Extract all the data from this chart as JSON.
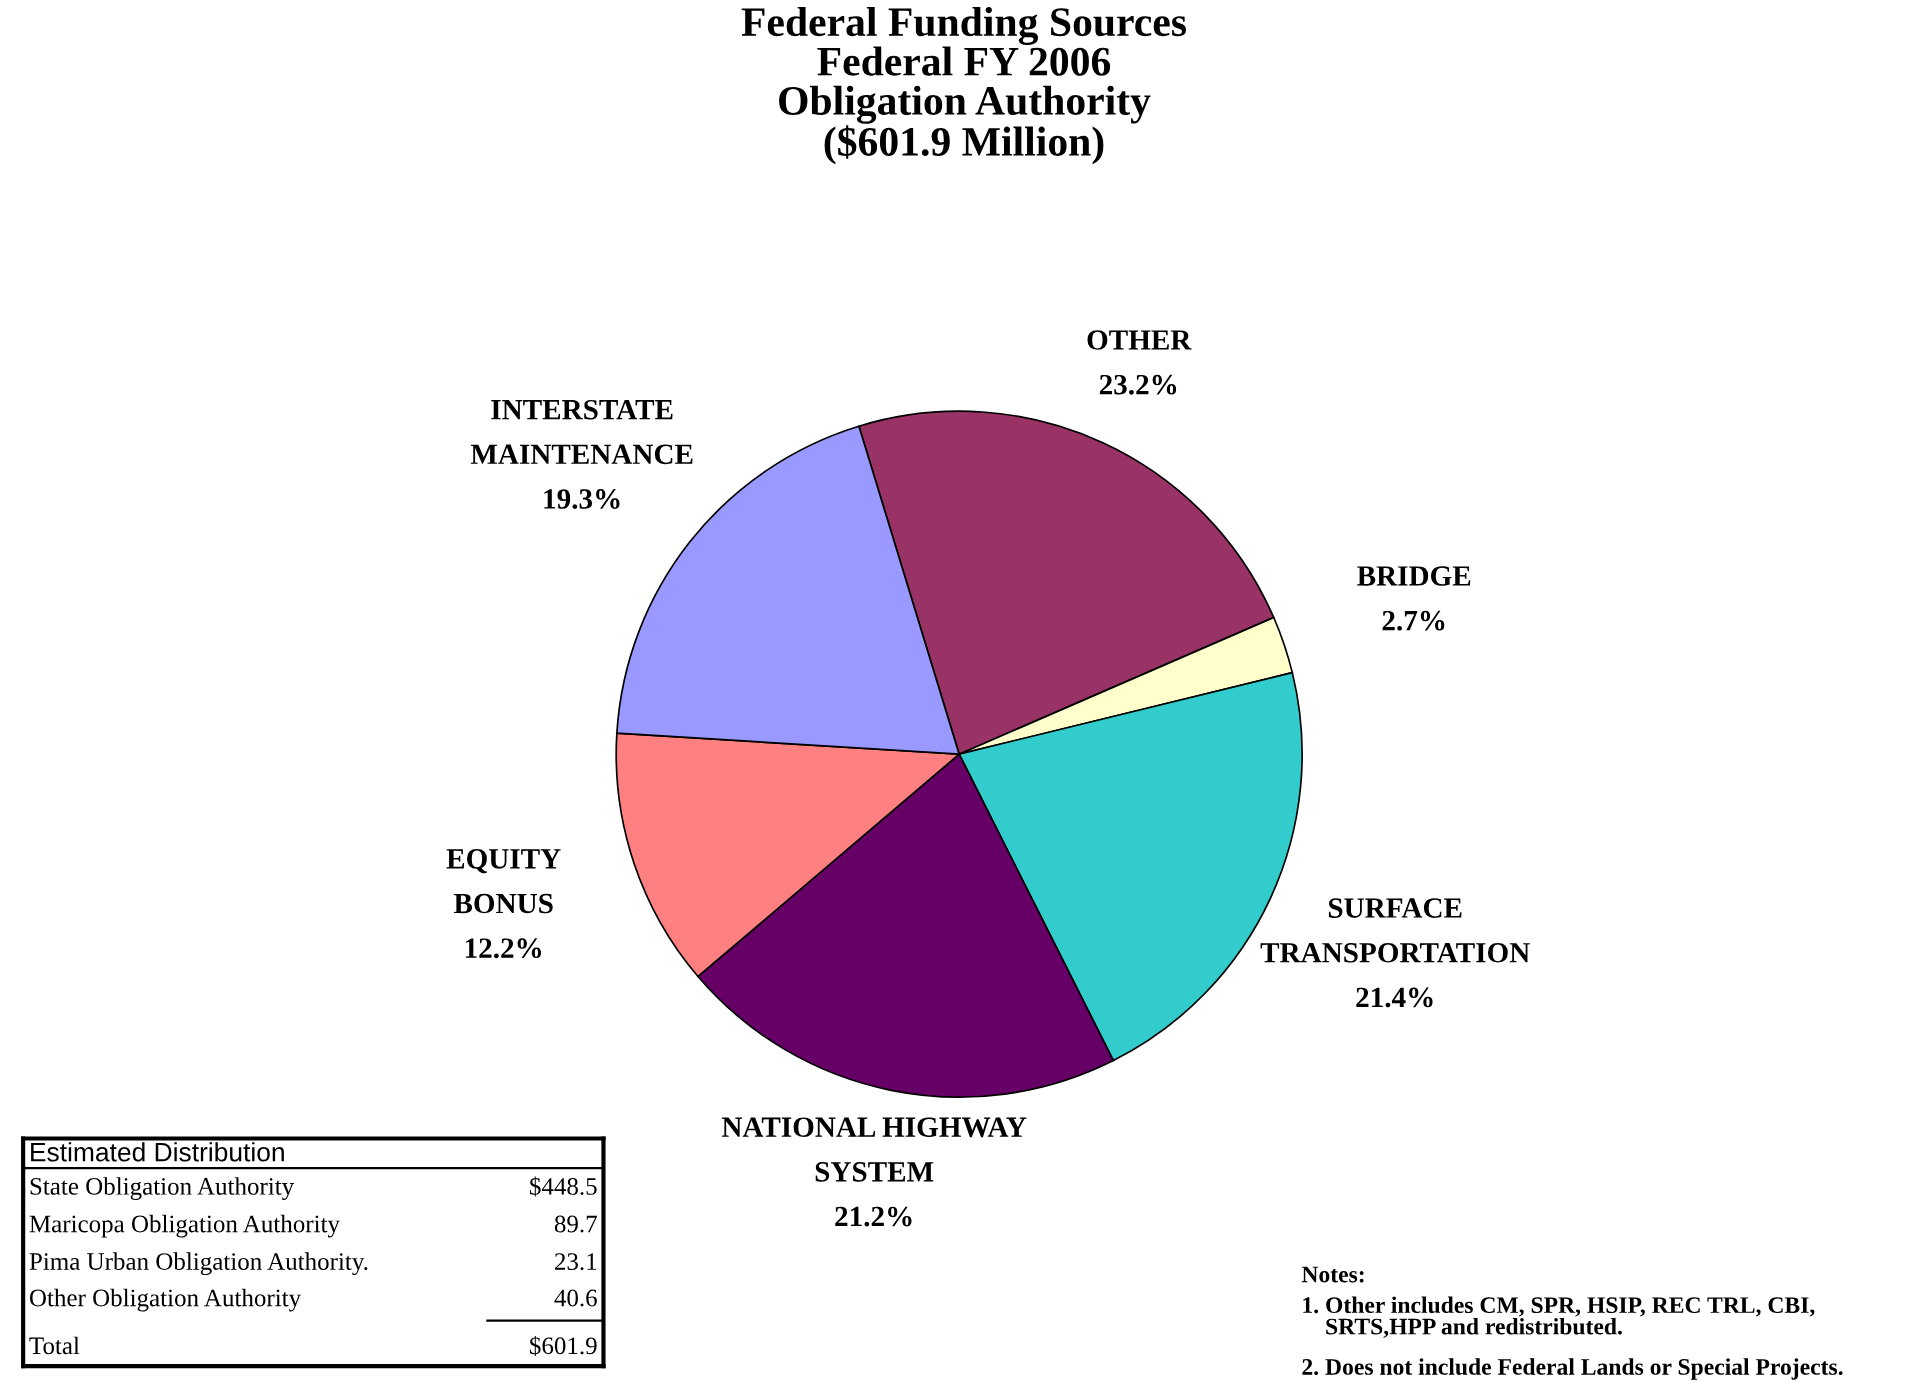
{
  "chart_data": {
    "type": "pie",
    "title": "Federal Funding Sources\nFederal FY 2006\nObligation Authority\n($601.9 Million)",
    "categories": [
      "OTHER",
      "BRIDGE",
      "SURFACE\nTRANSPORTATION",
      "NATIONAL HIGHWAY\nSYSTEM",
      "EQUITY\nBONUS",
      "INTERSTATE\nMAINTENANCE"
    ],
    "values": [
      23.2,
      2.7,
      21.4,
      21.2,
      12.2,
      19.3
    ],
    "colors": [
      "#993366",
      "#ffffcc",
      "#33cccc",
      "#660066",
      "#ff8080",
      "#9999ff"
    ],
    "value_labels": [
      "23.2%",
      "2.7%",
      "21.4%",
      "21.2%",
      "12.2%",
      "19.3%"
    ],
    "legend": false,
    "annotations": [
      "Estimated Distribution",
      "State Obligation Authority",
      "$448.5",
      "Maricopa Obligation Authority",
      "89.7",
      "Pima Urban Obligation Authority.",
      "23.1",
      "Other Obligation Authority",
      "40.6",
      "Total",
      "$601.9",
      "Notes:",
      "1. Other includes CM, SPR, HSIP, REC TRL, CBI,\n    SRTS,HPP and redistributed.",
      "2. Does not include Federal Lands or Special Projects."
    ]
  }
}
